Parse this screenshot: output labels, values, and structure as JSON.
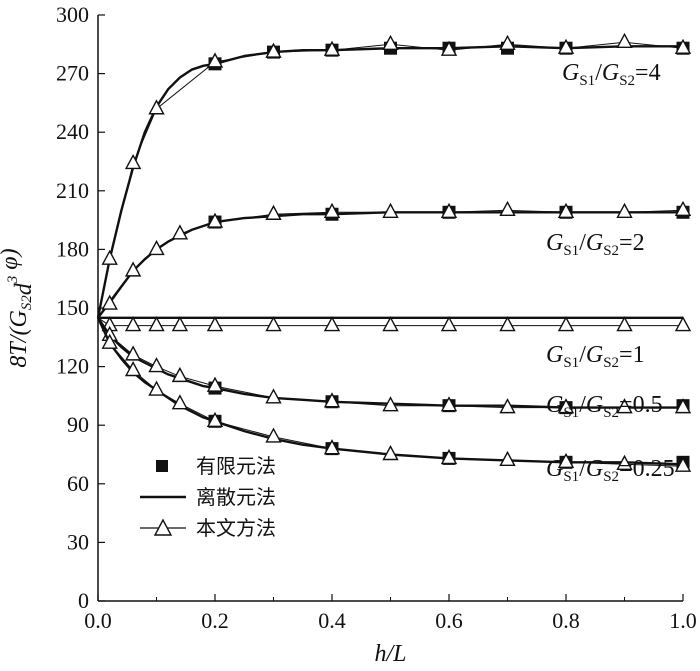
{
  "chart_data": {
    "type": "line",
    "xlabel": "h/L",
    "ylabel": "8T/(G_S2 d^3 φ)",
    "xlim": [
      0.0,
      1.0
    ],
    "ylim": [
      0,
      300
    ],
    "x_ticks": [
      "0.0",
      "0.2",
      "0.4",
      "0.6",
      "0.8",
      "1.0"
    ],
    "y_ticks": [
      "0",
      "30",
      "60",
      "90",
      "120",
      "150",
      "180",
      "210",
      "240",
      "270",
      "300"
    ],
    "legend": {
      "placement": "bottom-left",
      "entries": [
        {
          "label": "有限元法",
          "marker": "filled-square"
        },
        {
          "label": "离散元法",
          "marker": "line"
        },
        {
          "label": "本文方法",
          "marker": "open-triangle"
        }
      ]
    },
    "series": [
      {
        "name": "GS1/GS2=4",
        "label_parts": [
          "G",
          "S1",
          "/",
          "G",
          "S2",
          "=4"
        ],
        "curve_x": [
          0.0,
          0.02,
          0.04,
          0.06,
          0.08,
          0.1,
          0.12,
          0.14,
          0.16,
          0.18,
          0.2,
          0.25,
          0.3,
          0.35,
          0.4,
          0.5,
          0.6,
          0.7,
          0.8,
          0.9,
          1.0
        ],
        "curve_y": [
          145,
          175,
          200,
          222,
          240,
          253,
          262,
          268,
          272,
          274,
          275,
          279,
          281,
          282,
          282,
          283,
          283,
          284,
          283,
          284,
          284
        ],
        "fem_x": [
          0.2,
          0.3,
          0.4,
          0.5,
          0.6,
          0.7,
          0.8,
          1.0
        ],
        "fem_y": [
          275,
          281,
          282,
          283,
          283,
          283,
          283,
          283
        ],
        "tri_x": [
          0.02,
          0.06,
          0.1,
          0.2,
          0.3,
          0.4,
          0.5,
          0.6,
          0.7,
          0.8,
          0.9,
          1.0
        ],
        "tri_y": [
          175,
          224,
          252,
          276,
          281,
          282,
          285,
          282,
          285,
          283,
          286,
          283
        ]
      },
      {
        "name": "GS1/GS2=2",
        "label_parts": [
          "G",
          "S1",
          "/",
          "G",
          "S2",
          "=2"
        ],
        "curve_x": [
          0.0,
          0.02,
          0.04,
          0.06,
          0.08,
          0.1,
          0.12,
          0.14,
          0.16,
          0.18,
          0.2,
          0.25,
          0.3,
          0.35,
          0.4,
          0.5,
          0.6,
          0.7,
          0.8,
          0.9,
          1.0
        ],
        "curve_y": [
          145,
          153,
          161,
          169,
          175,
          180,
          184,
          187,
          190,
          192,
          194,
          196,
          197,
          198,
          198,
          199,
          199,
          199,
          199,
          199,
          199
        ],
        "fem_x": [
          0.2,
          0.4,
          0.6,
          0.8,
          1.0
        ],
        "fem_y": [
          194,
          198,
          199,
          199,
          199
        ],
        "tri_x": [
          0.02,
          0.06,
          0.1,
          0.14,
          0.2,
          0.3,
          0.4,
          0.5,
          0.6,
          0.7,
          0.8,
          0.9,
          1.0
        ],
        "tri_y": [
          152,
          169,
          180,
          188,
          194,
          198,
          199,
          199,
          199,
          200,
          199,
          199,
          200
        ]
      },
      {
        "name": "GS1/GS2=1",
        "label_parts": [
          "G",
          "S1",
          "/",
          "G",
          "S2",
          "=1"
        ],
        "curve_x": [
          0.0,
          1.0
        ],
        "curve_y": [
          145,
          145
        ],
        "fem_x": [],
        "fem_y": [],
        "tri_x": [
          0.02,
          0.06,
          0.1,
          0.14,
          0.2,
          0.3,
          0.4,
          0.5,
          0.6,
          0.7,
          0.8,
          0.9,
          1.0
        ],
        "tri_y": [
          141,
          141,
          141,
          141,
          141,
          141,
          141,
          141,
          141,
          141,
          141,
          141,
          141
        ]
      },
      {
        "name": "GS1/GS2=0.5",
        "label_parts": [
          "G",
          "S1",
          "/",
          "G",
          "S2",
          "=0.5"
        ],
        "curve_x": [
          0.0,
          0.02,
          0.04,
          0.06,
          0.08,
          0.1,
          0.12,
          0.14,
          0.16,
          0.18,
          0.2,
          0.25,
          0.3,
          0.35,
          0.4,
          0.5,
          0.6,
          0.7,
          0.8,
          0.9,
          1.0
        ],
        "curve_y": [
          145,
          136,
          130,
          125,
          122,
          119,
          116,
          114,
          112,
          110,
          109,
          106,
          104,
          103,
          102,
          101,
          100,
          100,
          99,
          99,
          99
        ],
        "fem_x": [
          0.2,
          0.4,
          0.6,
          0.8,
          1.0
        ],
        "fem_y": [
          109,
          102,
          100,
          99,
          100
        ],
        "tri_x": [
          0.02,
          0.06,
          0.1,
          0.14,
          0.2,
          0.3,
          0.4,
          0.5,
          0.6,
          0.7,
          0.8,
          0.9,
          1.0
        ],
        "tri_y": [
          136,
          126,
          120,
          115,
          110,
          104,
          102,
          100,
          100,
          99,
          99,
          99,
          99
        ]
      },
      {
        "name": "GS1/GS2=0.25",
        "label_parts": [
          "G",
          "S1",
          "/",
          "G",
          "S2",
          "=0.25"
        ],
        "curve_x": [
          0.0,
          0.02,
          0.04,
          0.06,
          0.08,
          0.1,
          0.12,
          0.14,
          0.16,
          0.18,
          0.2,
          0.25,
          0.3,
          0.35,
          0.4,
          0.5,
          0.6,
          0.7,
          0.8,
          0.9,
          1.0
        ],
        "curve_y": [
          145,
          132,
          124,
          117,
          112,
          108,
          104,
          100,
          97,
          94,
          92,
          87,
          83,
          80,
          78,
          75,
          73,
          72,
          71,
          71,
          70
        ],
        "fem_x": [
          0.2,
          0.4,
          0.6,
          0.8,
          1.0
        ],
        "fem_y": [
          92,
          78,
          73,
          71,
          71
        ],
        "tri_x": [
          0.02,
          0.06,
          0.1,
          0.14,
          0.2,
          0.3,
          0.4,
          0.5,
          0.6,
          0.7,
          0.8,
          0.9,
          1.0
        ],
        "tri_y": [
          132,
          118,
          108,
          101,
          92,
          84,
          78,
          75,
          73,
          72,
          71,
          70,
          69
        ]
      }
    ]
  }
}
